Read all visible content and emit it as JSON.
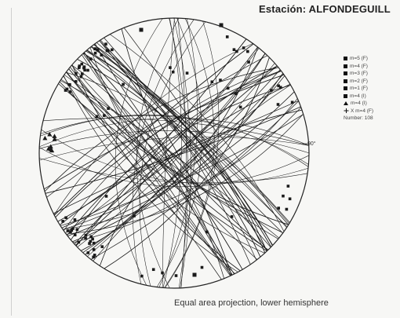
{
  "title": "Estación: ALFONDEGUILL",
  "caption": "Equal area projection, lower hemisphere",
  "azimuth_label": "90°",
  "legend": {
    "items": [
      {
        "label": "m=5 (F)",
        "symbol": "square"
      },
      {
        "label": "m=4 (F)",
        "symbol": "square"
      },
      {
        "label": "m=3 (F)",
        "symbol": "square"
      },
      {
        "label": "m=2 (F)",
        "symbol": "square"
      },
      {
        "label": "m=1 (F)",
        "symbol": "square"
      },
      {
        "label": "m=4 (I)",
        "symbol": "square"
      },
      {
        "label": "m=4 (I)",
        "symbol": "triangle"
      },
      {
        "label": "X m=4 (F)",
        "symbol": "cross"
      }
    ],
    "number_label": "Number: 108"
  },
  "colors": {
    "ink": "#1a1a1a",
    "circle": "#222222",
    "background": "#f7f7f5"
  }
}
